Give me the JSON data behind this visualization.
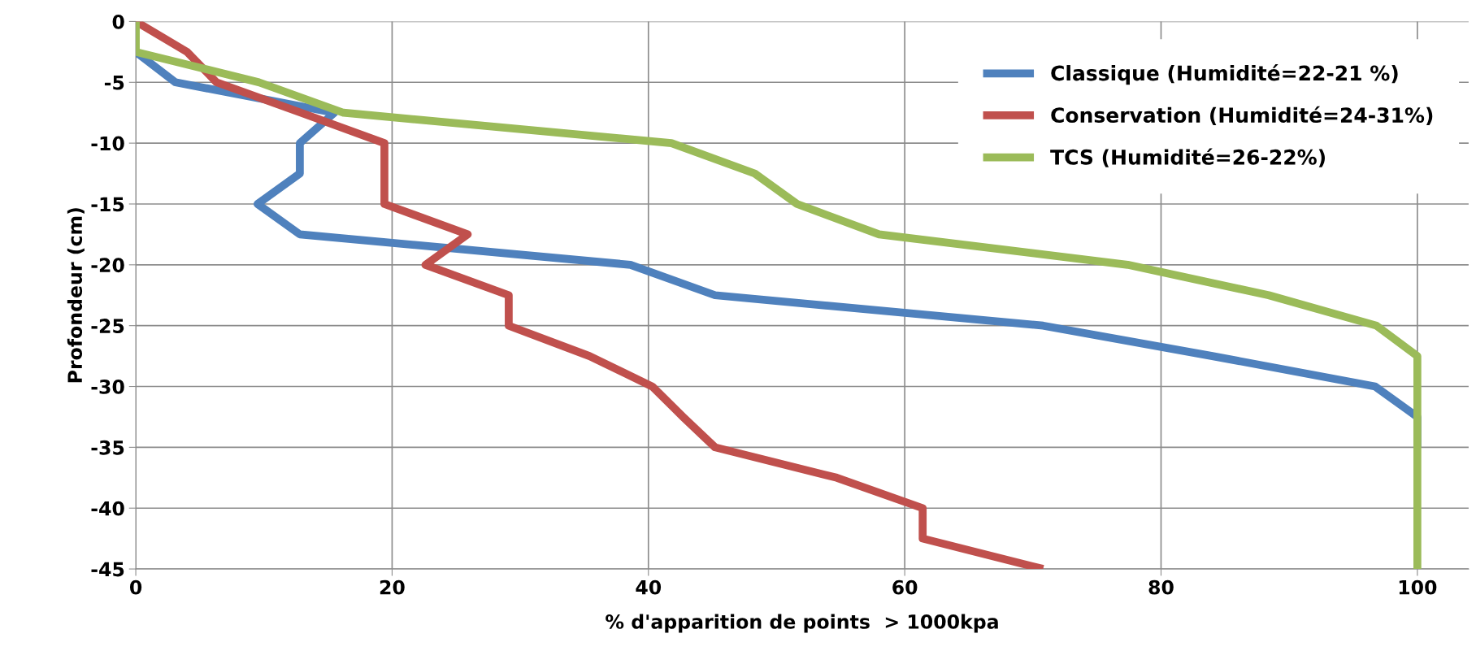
{
  "chart_data": {
    "type": "line",
    "xlabel": "% d'apparition de points  > 1000kpa",
    "ylabel": "Profondeur (cm)",
    "xlim": [
      0,
      104
    ],
    "xticks": [
      0,
      20,
      40,
      60,
      80,
      100
    ],
    "ylim": [
      -45,
      0
    ],
    "yticks": [
      0,
      -5,
      -10,
      -15,
      -20,
      -25,
      -30,
      -35,
      -40,
      -45
    ],
    "grid": true,
    "legend": "top right",
    "marker": "none",
    "line_style": "solid",
    "series": [
      {
        "name": "Classique (Humidité=22-21 %)",
        "color": "#4f81bd",
        "x": [
          0,
          3.1,
          15.5,
          12.8,
          12.8,
          9.5,
          12.8,
          38.6,
          45.2,
          70.8,
          84,
          96.7,
          100,
          100
        ],
        "values": [
          -2.5,
          -5,
          -7.5,
          -10,
          -12.5,
          -15,
          -17.5,
          -20,
          -22.5,
          -25,
          -27.5,
          -30,
          -32.5,
          -35
        ]
      },
      {
        "name": "Conservation (Humidité=24-31%)",
        "color": "#c0504d",
        "x": [
          0,
          4,
          6.3,
          12.9,
          19.4,
          19.4,
          19.4,
          25.9,
          22.6,
          29.1,
          29.1,
          35.4,
          40.3,
          42.7,
          45.2,
          54.7,
          61.4,
          61.4,
          70.8
        ],
        "values": [
          0,
          -2.5,
          -5,
          -7.5,
          -10,
          -12.5,
          -15,
          -17.5,
          -20,
          -22.5,
          -25,
          -27.5,
          -30,
          -32.5,
          -35,
          -37.5,
          -40,
          -42.5,
          -45
        ]
      },
      {
        "name": "TCS (Humidité=26-22%)",
        "color": "#9bbb59",
        "x": [
          0,
          0,
          9.6,
          16.2,
          41.8,
          48.3,
          51.6,
          58,
          77.4,
          88.4,
          96.8,
          100,
          100,
          100,
          100,
          100,
          100,
          100,
          100
        ],
        "values": [
          0,
          -2.5,
          -5,
          -7.5,
          -10,
          -12.5,
          -15,
          -17.5,
          -20,
          -22.5,
          -25,
          -27.5,
          -30,
          -32.5,
          -35,
          -37.5,
          -40,
          -42.5,
          -45
        ]
      }
    ]
  }
}
